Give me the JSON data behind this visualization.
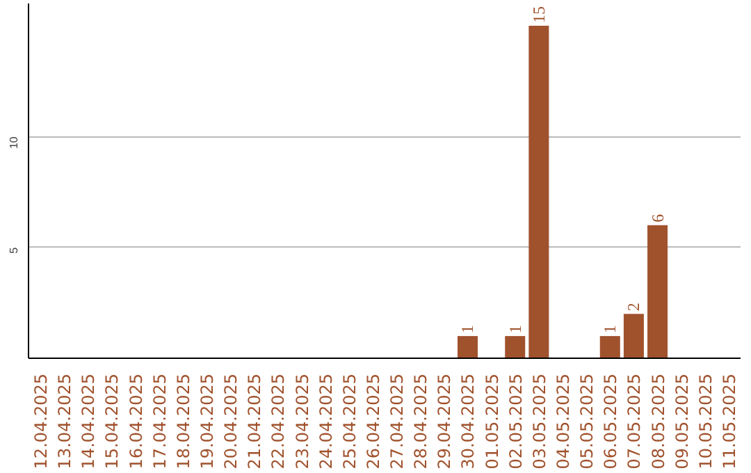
{
  "chart_data": {
    "type": "bar",
    "categories": [
      "12.04.2025",
      "13.04.2025",
      "14.04.2025",
      "15.04.2025",
      "16.04.2025",
      "17.04.2025",
      "18.04.2025",
      "19.04.2025",
      "20.04.2025",
      "21.04.2025",
      "22.04.2025",
      "23.04.2025",
      "24.04.2025",
      "25.04.2025",
      "26.04.2025",
      "27.04.2025",
      "28.04.2025",
      "29.04.2025",
      "30.04.2025",
      "01.05.2025",
      "02.05.2025",
      "03.05.2025",
      "04.05.2025",
      "05.05.2025",
      "06.05.2025",
      "07.05.2025",
      "08.05.2025",
      "09.05.2025",
      "10.05.2025",
      "11.05.2025"
    ],
    "values": [
      0,
      0,
      0,
      0,
      0,
      0,
      0,
      0,
      0,
      0,
      0,
      0,
      0,
      0,
      0,
      0,
      0,
      0,
      1,
      0,
      1,
      15,
      0,
      0,
      1,
      2,
      6,
      0,
      0,
      0
    ],
    "value_labels": [
      null,
      null,
      null,
      null,
      null,
      null,
      null,
      null,
      null,
      null,
      null,
      null,
      null,
      null,
      null,
      null,
      null,
      null,
      "1",
      null,
      "1",
      "15",
      null,
      null,
      "1",
      "2",
      "6",
      null,
      null,
      null
    ],
    "color": "#a0522d",
    "ylim": [
      0,
      16
    ],
    "yticks": [
      5,
      10
    ],
    "grid": "y"
  }
}
